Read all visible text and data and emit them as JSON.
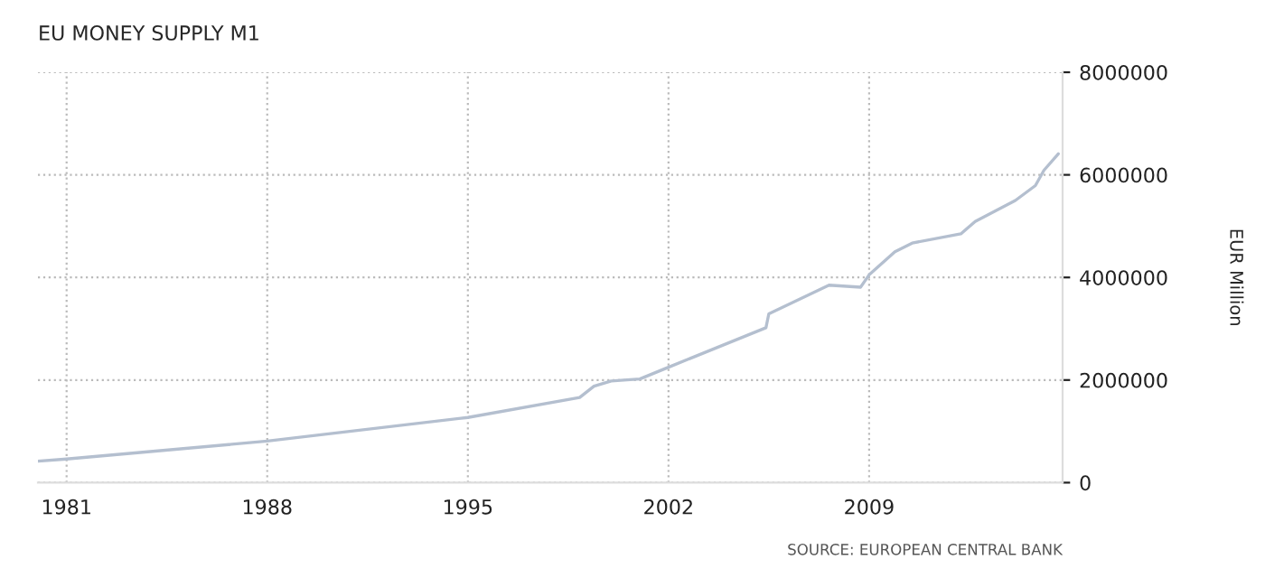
{
  "chart_data": {
    "type": "line",
    "title": "EU MONEY SUPPLY M1",
    "ylabel": "EUR Million",
    "annotations": [
      "SOURCE: EUROPEAN CENTRAL BANK"
    ],
    "x": [
      1980.0,
      1981.0,
      1988.0,
      1995.0,
      1998.9,
      1999.4,
      2000.0,
      2001.0,
      2002.0,
      2005.4,
      2005.5,
      2007.6,
      2008.7,
      2009.0,
      2009.9,
      2010.5,
      2012.2,
      2012.7,
      2014.1,
      2014.8,
      2015.1,
      2015.6
    ],
    "series": [
      {
        "color": "#b4bfcf",
        "values": [
          420000,
          460000,
          810000,
          1270000,
          1660000,
          1880000,
          1980000,
          2020000,
          2250000,
          3020000,
          3290000,
          3850000,
          3810000,
          4050000,
          4500000,
          4670000,
          4850000,
          5090000,
          5500000,
          5790000,
          6090000,
          6410000
        ]
      }
    ],
    "xlim": [
      1980.0,
      2015.75
    ],
    "xticks": [
      1981,
      1988,
      1995,
      2002,
      2009
    ],
    "ylim": [
      0,
      8000000
    ],
    "yticks": [
      0,
      2000000,
      4000000,
      6000000,
      8000000
    ],
    "grid": true,
    "marker": "none",
    "line_style": "solid"
  }
}
